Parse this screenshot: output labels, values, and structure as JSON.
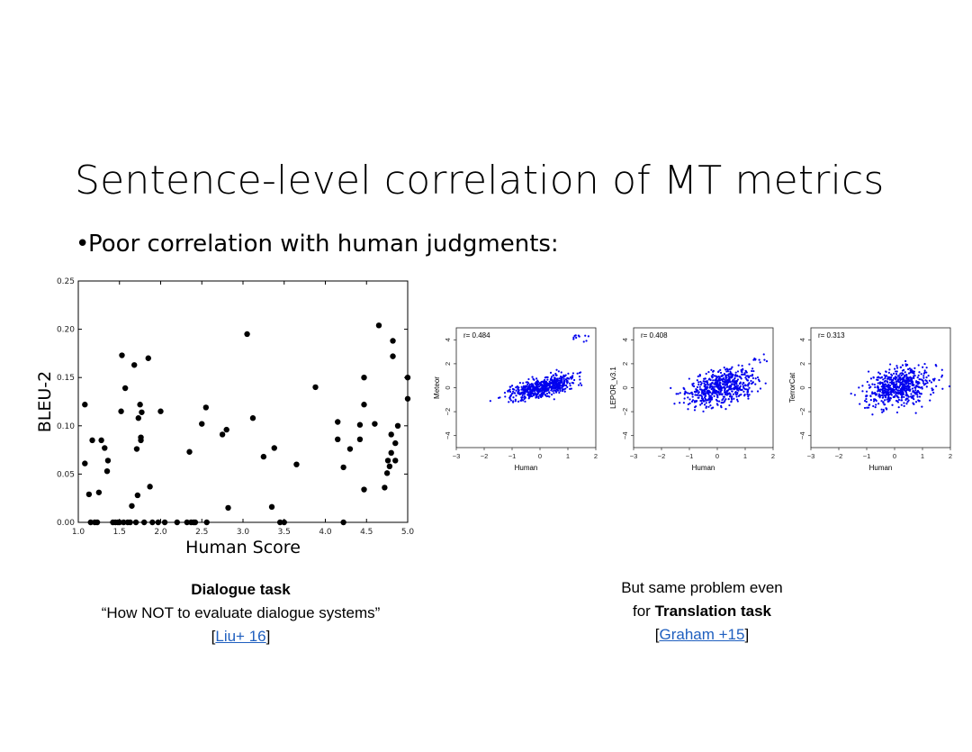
{
  "slide": {
    "title": "Sentence-level correlation of MT metrics",
    "bullet_symbol": "•",
    "bullet": "Poor correlation with human judgments:"
  },
  "caption_left": {
    "line1": "Dialogue task",
    "line2": "“How NOT to evaluate dialogue systems”",
    "bracket_open": "[",
    "link": "Liu+ 16",
    "bracket_close": "]"
  },
  "caption_right": {
    "line1": "But same problem even",
    "line2_prefix": "for ",
    "line2_bold": "Translation task",
    "bracket_open": "[",
    "link": "Graham +15",
    "bracket_close": "]"
  },
  "chart_data": [
    {
      "type": "scatter",
      "xlabel": "Human Score",
      "ylabel": "BLEU-2",
      "xlim": [
        1.0,
        5.0
      ],
      "ylim": [
        0.0,
        0.25
      ],
      "xticks": [
        "1.0",
        "1.5",
        "2.0",
        "2.5",
        "3.0",
        "3.5",
        "4.0",
        "4.5",
        "5.0"
      ],
      "yticks": [
        "0.00",
        "0.05",
        "0.10",
        "0.15",
        "0.20",
        "0.25"
      ],
      "color": "#000000",
      "points": [
        [
          1.08,
          0.061
        ],
        [
          1.08,
          0.122
        ],
        [
          1.13,
          0.029
        ],
        [
          1.15,
          0.0
        ],
        [
          1.17,
          0.085
        ],
        [
          1.2,
          0.0
        ],
        [
          1.23,
          0.0
        ],
        [
          1.25,
          0.031
        ],
        [
          1.28,
          0.085
        ],
        [
          1.32,
          0.077
        ],
        [
          1.35,
          0.053
        ],
        [
          1.36,
          0.064
        ],
        [
          1.42,
          0.0
        ],
        [
          1.45,
          0.0
        ],
        [
          1.48,
          0.0
        ],
        [
          1.5,
          0.0
        ],
        [
          1.52,
          0.115
        ],
        [
          1.53,
          0.173
        ],
        [
          1.55,
          0.0
        ],
        [
          1.57,
          0.139
        ],
        [
          1.6,
          0.0
        ],
        [
          1.63,
          0.0
        ],
        [
          1.65,
          0.017
        ],
        [
          1.68,
          0.163
        ],
        [
          1.7,
          0.0
        ],
        [
          1.71,
          0.076
        ],
        [
          1.72,
          0.028
        ],
        [
          1.73,
          0.108
        ],
        [
          1.75,
          0.122
        ],
        [
          1.76,
          0.085
        ],
        [
          1.76,
          0.088
        ],
        [
          1.77,
          0.114
        ],
        [
          1.8,
          0.0
        ],
        [
          1.85,
          0.17
        ],
        [
          1.87,
          0.037
        ],
        [
          1.9,
          0.0
        ],
        [
          1.97,
          0.0
        ],
        [
          2.0,
          0.115
        ],
        [
          2.05,
          0.0
        ],
        [
          2.2,
          0.0
        ],
        [
          2.32,
          0.0
        ],
        [
          2.35,
          0.073
        ],
        [
          2.37,
          0.0
        ],
        [
          2.4,
          0.0
        ],
        [
          2.42,
          0.0
        ],
        [
          2.5,
          0.102
        ],
        [
          2.55,
          0.119
        ],
        [
          2.56,
          0.0
        ],
        [
          2.75,
          0.091
        ],
        [
          2.8,
          0.096
        ],
        [
          2.82,
          0.015
        ],
        [
          3.05,
          0.195
        ],
        [
          3.12,
          0.108
        ],
        [
          3.25,
          0.068
        ],
        [
          3.35,
          0.016
        ],
        [
          3.38,
          0.077
        ],
        [
          3.45,
          0.0
        ],
        [
          3.5,
          0.0
        ],
        [
          3.65,
          0.06
        ],
        [
          3.88,
          0.14
        ],
        [
          4.15,
          0.104
        ],
        [
          4.15,
          0.086
        ],
        [
          4.22,
          0.057
        ],
        [
          4.22,
          0.0
        ],
        [
          4.3,
          0.076
        ],
        [
          4.42,
          0.101
        ],
        [
          4.42,
          0.086
        ],
        [
          4.47,
          0.034
        ],
        [
          4.47,
          0.122
        ],
        [
          4.47,
          0.15
        ],
        [
          4.6,
          0.102
        ],
        [
          4.65,
          0.204
        ],
        [
          4.72,
          0.036
        ],
        [
          4.75,
          0.051
        ],
        [
          4.76,
          0.064
        ],
        [
          4.78,
          0.058
        ],
        [
          4.8,
          0.072
        ],
        [
          4.8,
          0.091
        ],
        [
          4.82,
          0.188
        ],
        [
          4.82,
          0.172
        ],
        [
          4.85,
          0.064
        ],
        [
          4.85,
          0.082
        ],
        [
          4.88,
          0.1
        ],
        [
          5.0,
          0.15
        ],
        [
          5.0,
          0.128
        ]
      ]
    },
    {
      "type": "scatter",
      "xlabel": "Human",
      "ylabel": "Meteor",
      "annotation": "r= 0.484",
      "xlim": [
        -3,
        2
      ],
      "ylim": [
        -5,
        5
      ],
      "xticks": [
        "-3",
        "-2",
        "-1",
        "0",
        "1",
        "2"
      ],
      "yticks": [
        "-4",
        "-2",
        "0",
        "2",
        "4"
      ],
      "color": "#0000ee",
      "r": 0.484,
      "n_points": 600
    },
    {
      "type": "scatter",
      "xlabel": "Human",
      "ylabel": "LEPOR_v3.1",
      "annotation": "r= 0.408",
      "xlim": [
        -3,
        2
      ],
      "ylim": [
        -5,
        5
      ],
      "xticks": [
        "-3",
        "-2",
        "-1",
        "0",
        "1",
        "2"
      ],
      "yticks": [
        "-4",
        "-2",
        "0",
        "2",
        "4"
      ],
      "color": "#0000ee",
      "r": 0.408,
      "n_points": 600
    },
    {
      "type": "scatter",
      "xlabel": "Human",
      "ylabel": "TerrorCat",
      "annotation": "r= 0.313",
      "xlim": [
        -3,
        2
      ],
      "ylim": [
        -5,
        5
      ],
      "xticks": [
        "-3",
        "-2",
        "-1",
        "0",
        "1",
        "2"
      ],
      "yticks": [
        "-4",
        "-2",
        "0",
        "2",
        "4"
      ],
      "color": "#0000ee",
      "r": 0.313,
      "n_points": 600
    }
  ]
}
